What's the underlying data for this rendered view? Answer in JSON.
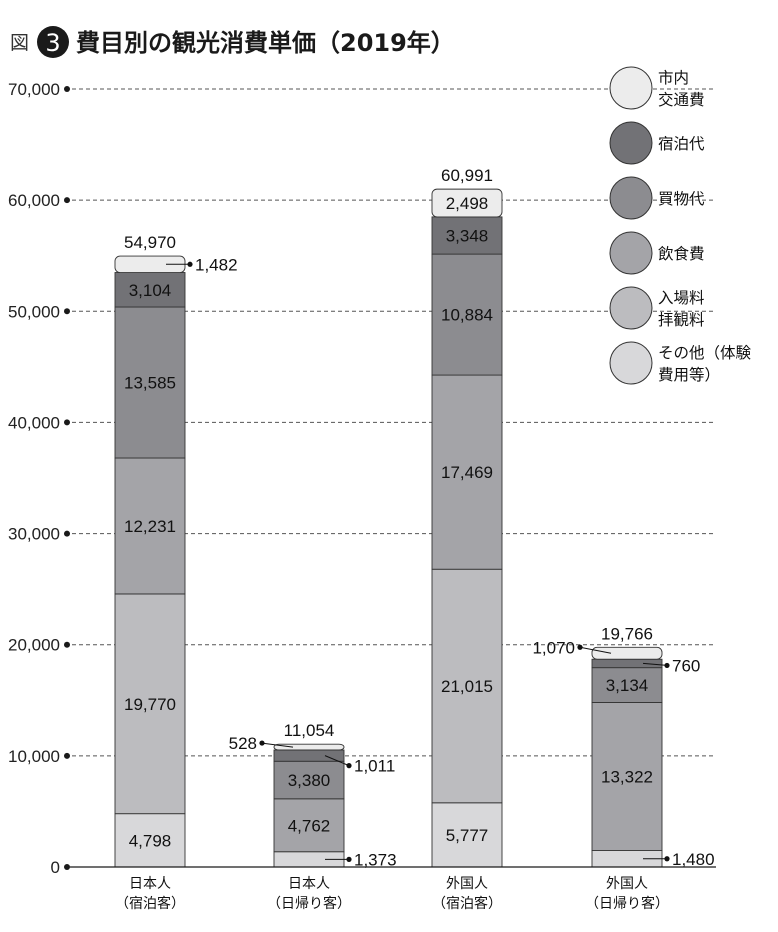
{
  "figure": {
    "prefix": "図",
    "number": "3",
    "title": "費目別の観光消費単価（2019年）"
  },
  "chart_data": {
    "type": "bar",
    "stacked": true,
    "ylim": [
      0,
      70000
    ],
    "yticks": [
      0,
      10000,
      20000,
      30000,
      40000,
      50000,
      60000,
      70000
    ],
    "ytick_labels": [
      "0",
      "10,000",
      "20,000",
      "30,000",
      "40,000",
      "50,000",
      "60,000",
      "70,000"
    ],
    "grid": "horizontal-dashed",
    "legend_position": "right",
    "categories": [
      {
        "line1": "日本人",
        "line2": "（宿泊客）"
      },
      {
        "line1": "日本人",
        "line2": "（日帰り客）"
      },
      {
        "line1": "外国人",
        "line2": "（宿泊客）"
      },
      {
        "line1": "外国人",
        "line2": "（日帰り客）"
      }
    ],
    "totals": [
      54970,
      11054,
      60991,
      19766
    ],
    "total_labels": [
      "54,970",
      "11,054",
      "60,991",
      "19,766"
    ],
    "series": [
      {
        "name_lines": [
          "その他（体験",
          "費用等）"
        ],
        "color": "#d8d8da",
        "values": [
          4798,
          1373,
          5777,
          1480
        ],
        "labels": [
          "4,798",
          "1,373",
          "5,777",
          "1,480"
        ]
      },
      {
        "name_lines": [
          "入場料",
          "拝観料"
        ],
        "color": "#bcbcbf",
        "values": [
          19770,
          0,
          21015,
          0
        ],
        "labels": [
          "19,770",
          "",
          "21,015",
          ""
        ]
      },
      {
        "name_lines": [
          "飲食費"
        ],
        "color": "#a4a4a8",
        "values": [
          12231,
          4762,
          17469,
          13322
        ],
        "labels": [
          "12,231",
          "4,762",
          "17,469",
          "13,322"
        ]
      },
      {
        "name_lines": [
          "買物代"
        ],
        "color": "#8c8c90",
        "values": [
          13585,
          3380,
          10884,
          3134
        ],
        "labels": [
          "13,585",
          "3,380",
          "10,884",
          "3,134"
        ]
      },
      {
        "name_lines": [
          "宿泊代"
        ],
        "color": "#727276",
        "values": [
          3104,
          1011,
          3348,
          760
        ],
        "labels": [
          "3,104",
          "1,011",
          "3,348",
          "760"
        ]
      },
      {
        "name_lines": [
          "市内",
          "交通費"
        ],
        "color": "#ececec",
        "values": [
          1482,
          528,
          2498,
          1070
        ],
        "labels": [
          "1,482",
          "528",
          "2,498",
          "1,070"
        ]
      }
    ]
  }
}
